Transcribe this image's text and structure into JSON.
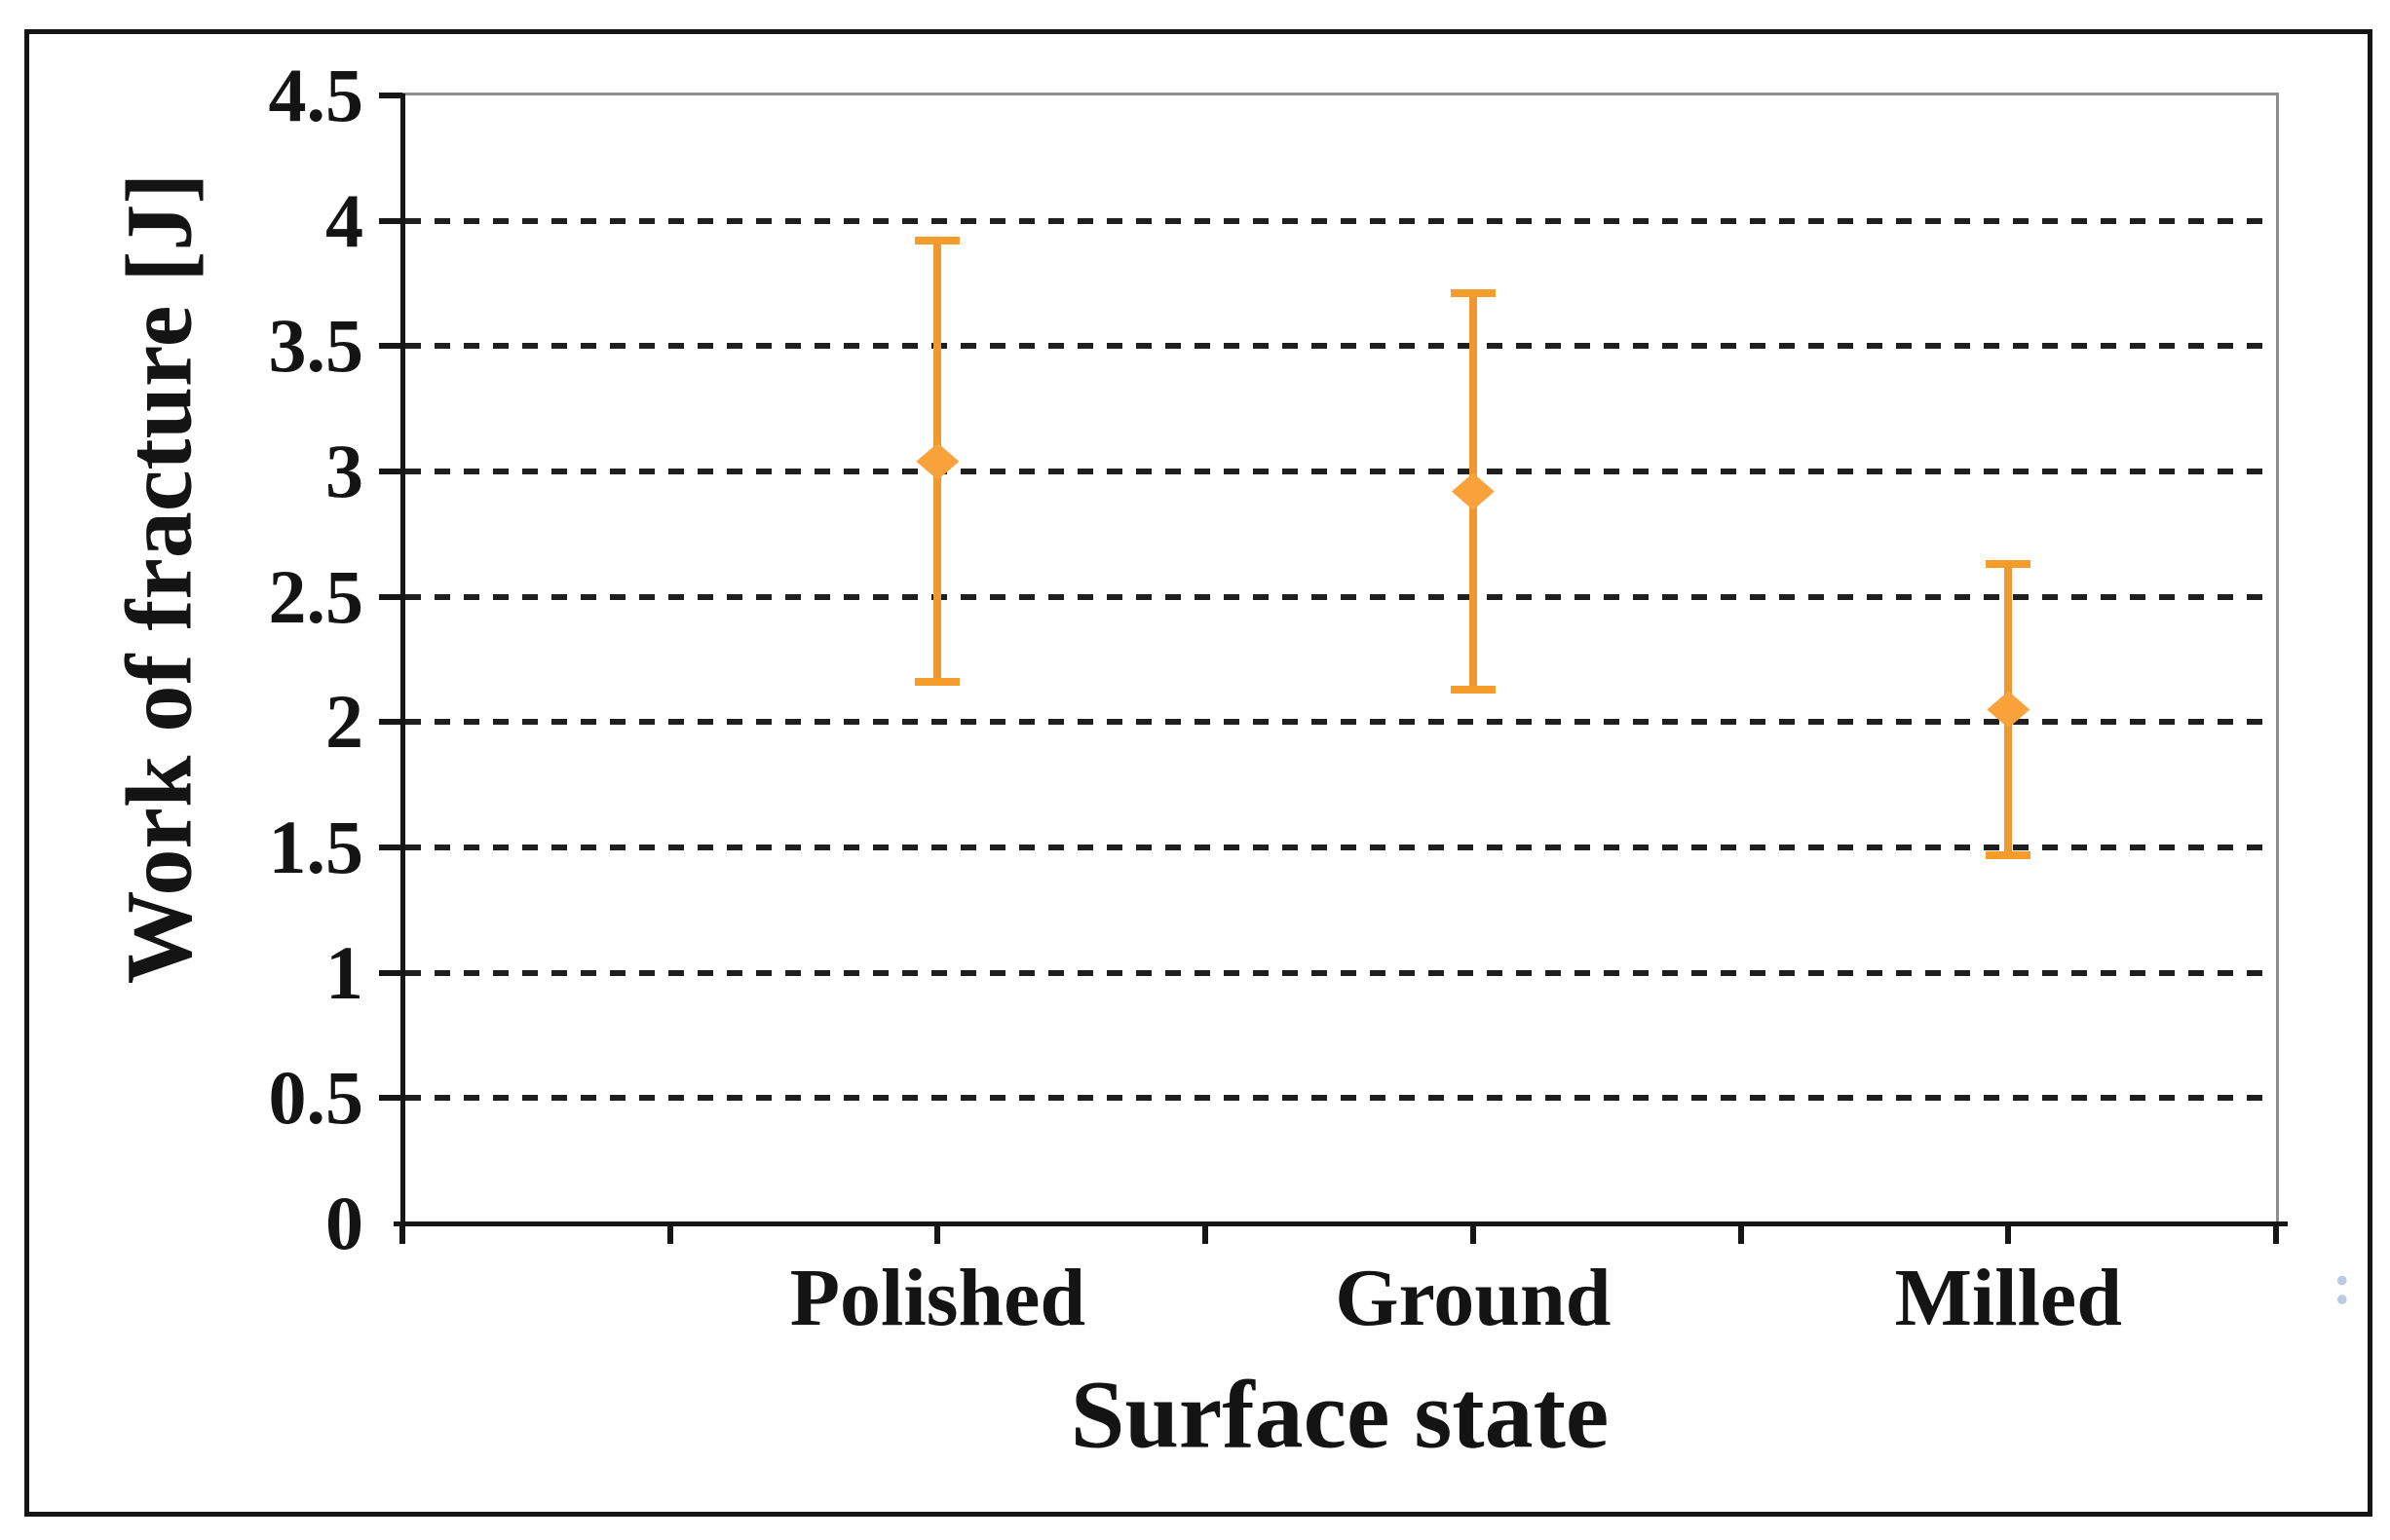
{
  "figure": {
    "background": "#ffffff",
    "frame_color": "#141414",
    "plot_border_color": "#8d8d8d",
    "gridline_color": "#1f1f1f",
    "accent_color": "#f59c2b"
  },
  "chart_data": {
    "type": "scatter",
    "title": "",
    "xlabel": "Surface state",
    "ylabel": "Work of fracture [J]",
    "categories": [
      "Polished",
      "Ground",
      "Milled"
    ],
    "series": [
      {
        "name": "Work of fracture",
        "marker": "diamond",
        "color": "#f9a23b",
        "values": [
          3.04,
          2.92,
          2.05
        ],
        "error_low": [
          2.16,
          2.13,
          1.47
        ],
        "error_high": [
          3.92,
          3.71,
          2.63
        ]
      }
    ],
    "ylim": [
      0,
      4.5
    ],
    "ytick_step": 0.5,
    "ytick_labels": [
      "0",
      "0.5",
      "1",
      "1.5",
      "2",
      "2.5",
      "3",
      "3.5",
      "4",
      "4.5"
    ],
    "grid": "horizontal dashed lines every 0.5 from 0.5 to 4.0",
    "legend_position": "none",
    "stray_mark": ":"
  }
}
